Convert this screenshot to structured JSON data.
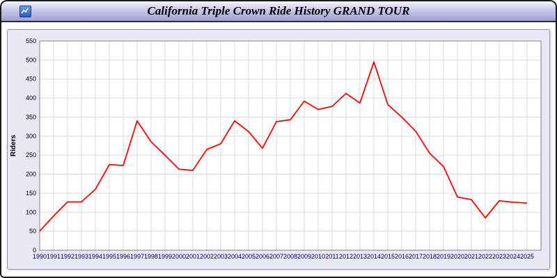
{
  "window": {
    "title": "California Triple Crown Ride History GRAND TOUR",
    "icon": "chart-window-icon"
  },
  "chart_data": {
    "type": "line",
    "title": "California Triple Crown Ride History GRAND TOUR",
    "xlabel": "",
    "ylabel": "Riders",
    "ylim": [
      0,
      550
    ],
    "ytick_step": 50,
    "grid": true,
    "legend_position": "none",
    "line_color": "#ff0000",
    "plot_bg": "#ffffff",
    "panel_bg": "#e9e9f5",
    "grid_color": "#d9d9d9",
    "x": [
      1990,
      1991,
      1992,
      1993,
      1994,
      1995,
      1996,
      1997,
      1998,
      1999,
      2000,
      2001,
      2002,
      2003,
      2004,
      2005,
      2006,
      2007,
      2008,
      2009,
      2010,
      2011,
      2012,
      2013,
      2014,
      2015,
      2016,
      2017,
      2018,
      2019,
      2020,
      2021,
      2022,
      2023,
      2024,
      2025
    ],
    "values": [
      50,
      90,
      127,
      127,
      160,
      225,
      223,
      340,
      285,
      250,
      213,
      210,
      265,
      280,
      340,
      312,
      268,
      338,
      343,
      392,
      370,
      378,
      412,
      387,
      495,
      383,
      350,
      313,
      255,
      220,
      140,
      133,
      85,
      130,
      126,
      124
    ]
  }
}
